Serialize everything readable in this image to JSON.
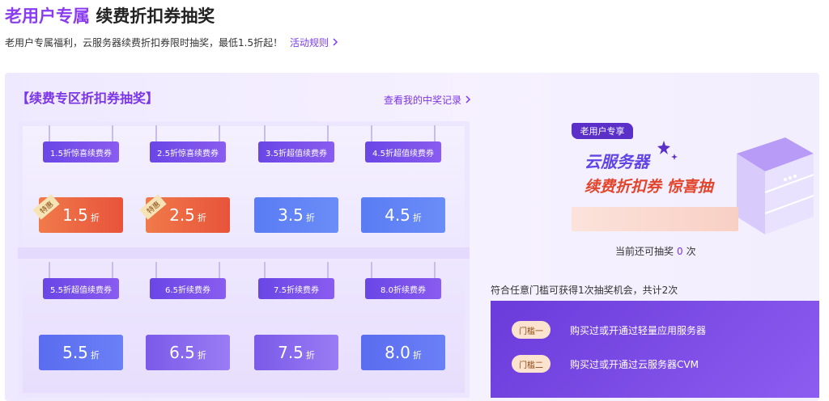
{
  "header": {
    "title_highlight": "老用户专属",
    "title": "续费折扣券抽奖",
    "subtitle": "老用户专属福利，云服务器续费折扣券限时抽奖，最低1.5折起！",
    "rules_link": "活动规则"
  },
  "panel": {
    "heading": "【续费专区折扣券抽奖】",
    "records_link": "查看我的中奖记录",
    "coupons": [
      {
        "label": "1.5折惊喜续费券",
        "value": "1.5",
        "unit": "折",
        "badge": "特惠"
      },
      {
        "label": "2.5折惊喜续费券",
        "value": "2.5",
        "unit": "折",
        "badge": "特惠"
      },
      {
        "label": "3.5折超值续费券",
        "value": "3.5",
        "unit": "折"
      },
      {
        "label": "4.5折超值续费券",
        "value": "4.5",
        "unit": "折"
      },
      {
        "label": "5.5折超值续费券",
        "value": "5.5",
        "unit": "折"
      },
      {
        "label": "6.5折续费券",
        "value": "6.5",
        "unit": "折"
      },
      {
        "label": "7.5折续费券",
        "value": "7.5",
        "unit": "折"
      },
      {
        "label": "8.0折续费券",
        "value": "8.0",
        "unit": "折"
      }
    ]
  },
  "promo": {
    "tag": "老用户专享",
    "line1": "云服务器",
    "line2": "续费折扣券 惊喜抽",
    "remaining_prefix": "当前还可抽奖",
    "remaining_count": 0,
    "remaining_suffix": "次"
  },
  "thresholds": {
    "intro": "符合任意门槛可获得1次抽奖机会，共计2次",
    "items": [
      {
        "tag": "门槛一",
        "text": "购买过或开通过轻量应用服务器"
      },
      {
        "tag": "门槛二",
        "text": "购买过或开通过云服务器CVM"
      }
    ]
  }
}
